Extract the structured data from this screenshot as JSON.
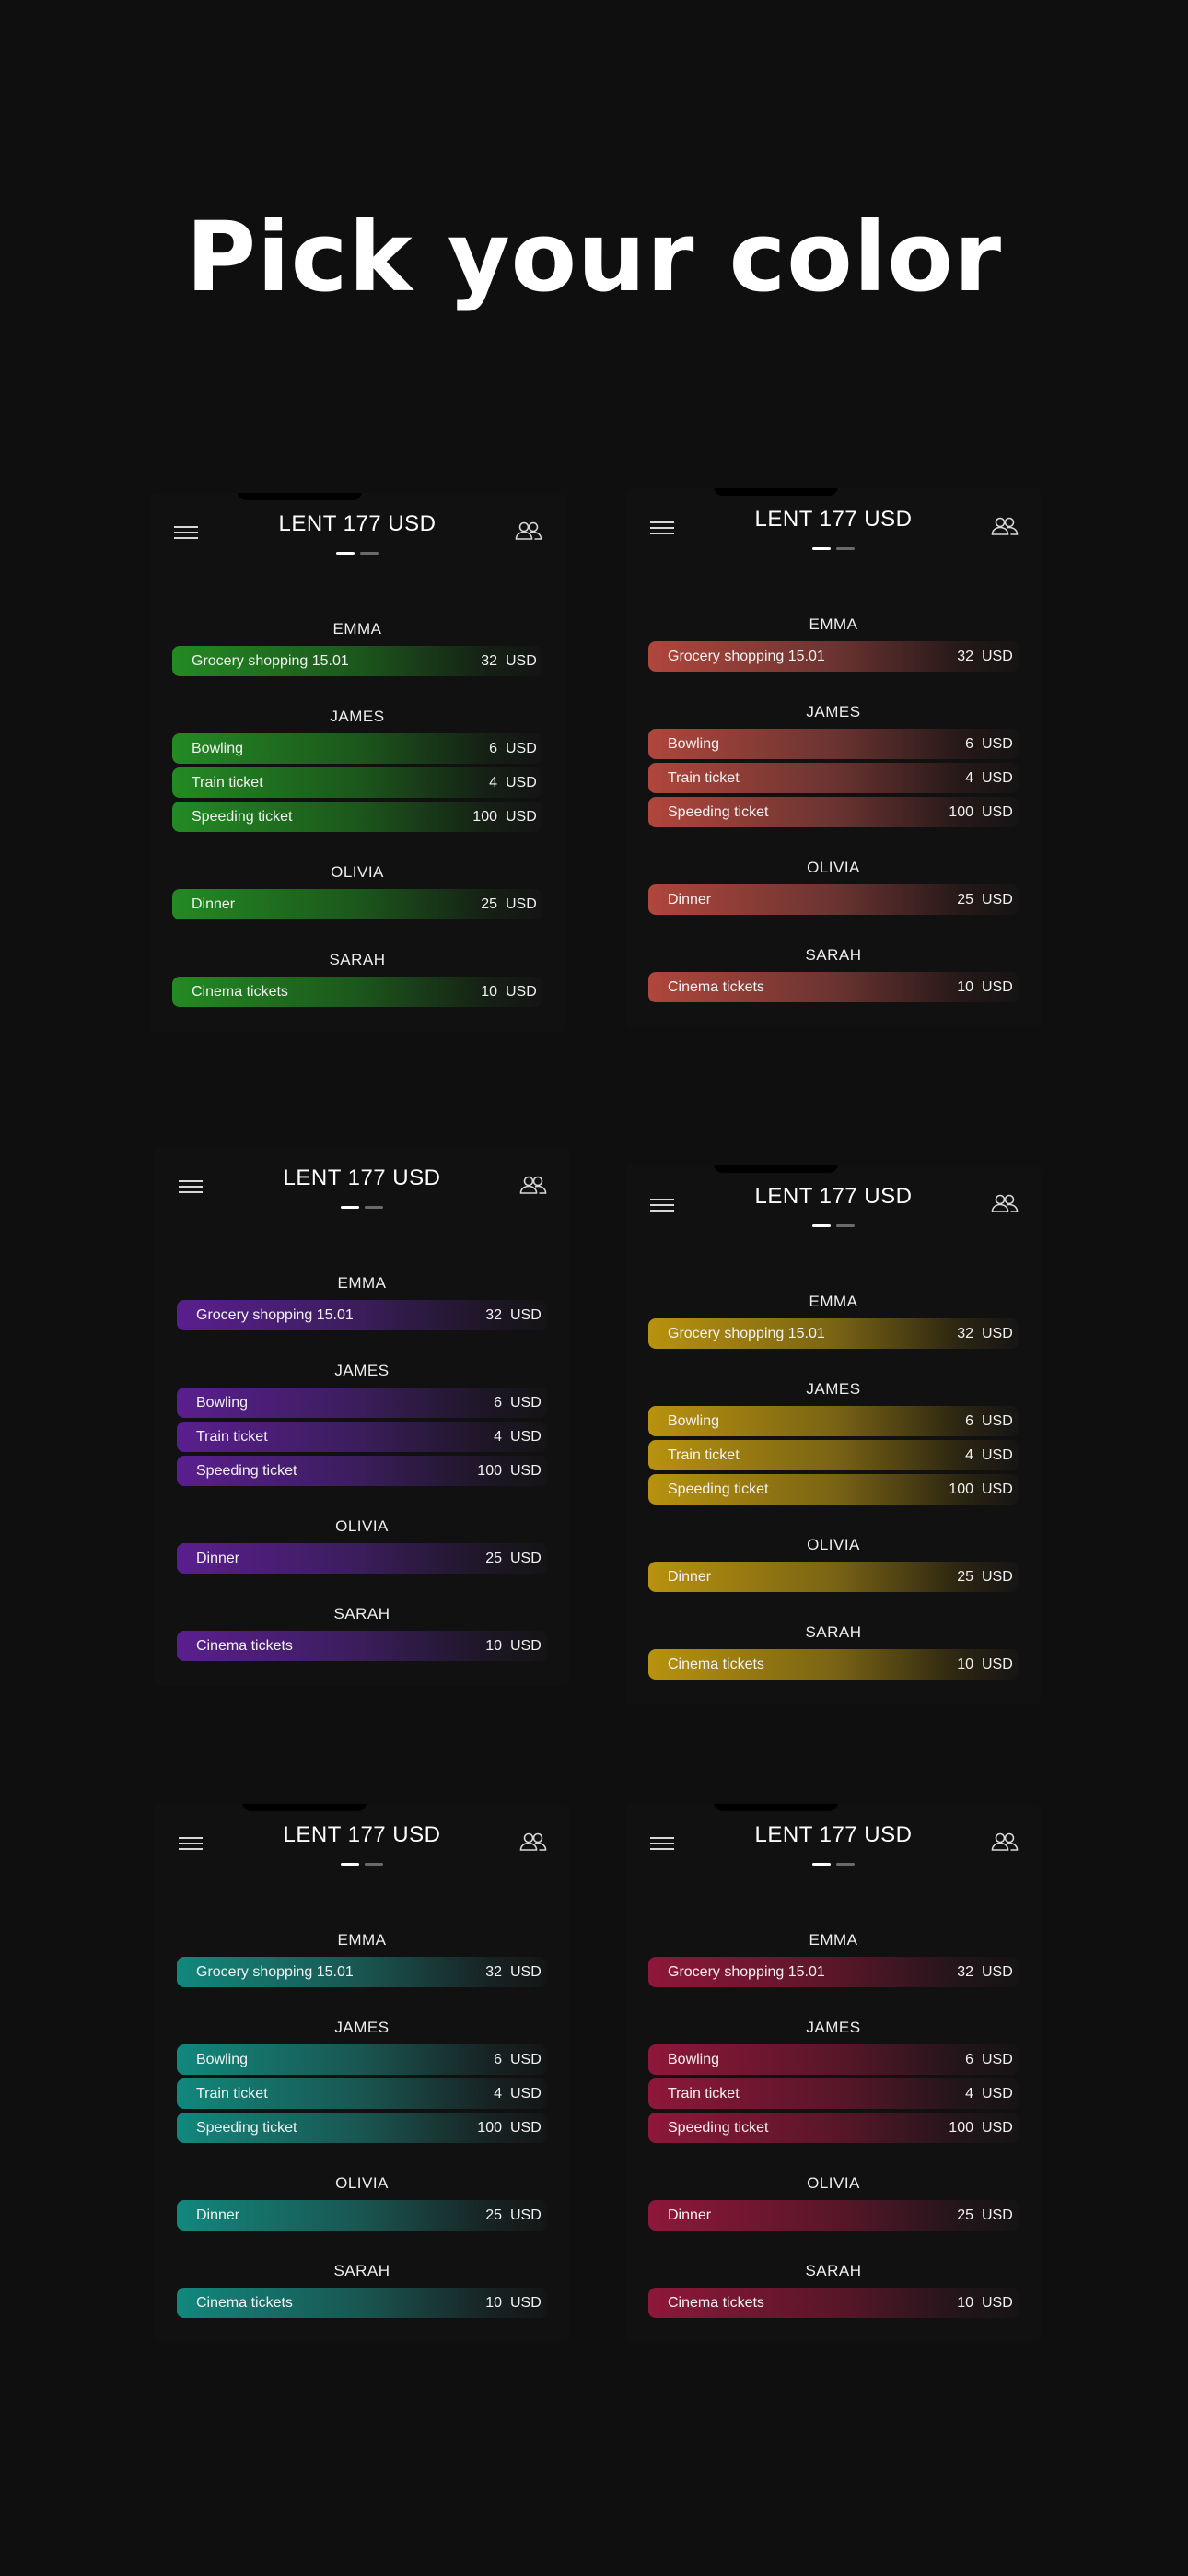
{
  "headline": "Pick your color",
  "screens": [
    {
      "theme": "green",
      "accent": "#238a23",
      "title": "LENT 177 USD",
      "groups": [
        {
          "name": "EMMA",
          "items": [
            {
              "label": "Grocery shopping 15.01",
              "amount": "32",
              "currency": "USD"
            }
          ]
        },
        {
          "name": "JAMES",
          "items": [
            {
              "label": "Bowling",
              "amount": "6",
              "currency": "USD"
            },
            {
              "label": "Train ticket",
              "amount": "4",
              "currency": "USD"
            },
            {
              "label": "Speeding ticket",
              "amount": "100",
              "currency": "USD"
            }
          ]
        },
        {
          "name": "OLIVIA",
          "items": [
            {
              "label": "Dinner",
              "amount": "25",
              "currency": "USD"
            }
          ]
        },
        {
          "name": "SARAH",
          "items": [
            {
              "label": "Cinema tickets",
              "amount": "10",
              "currency": "USD"
            }
          ]
        }
      ]
    },
    {
      "theme": "red",
      "accent": "#b0463c",
      "title": "LENT 177 USD",
      "groups": [
        {
          "name": "EMMA",
          "items": [
            {
              "label": "Grocery shopping 15.01",
              "amount": "32",
              "currency": "USD"
            }
          ]
        },
        {
          "name": "JAMES",
          "items": [
            {
              "label": "Bowling",
              "amount": "6",
              "currency": "USD"
            },
            {
              "label": "Train ticket",
              "amount": "4",
              "currency": "USD"
            },
            {
              "label": "Speeding ticket",
              "amount": "100",
              "currency": "USD"
            }
          ]
        },
        {
          "name": "OLIVIA",
          "items": [
            {
              "label": "Dinner",
              "amount": "25",
              "currency": "USD"
            }
          ]
        },
        {
          "name": "SARAH",
          "items": [
            {
              "label": "Cinema tickets",
              "amount": "10",
              "currency": "USD"
            }
          ]
        }
      ]
    },
    {
      "theme": "purple",
      "accent": "#5a1f8f",
      "title": "LENT 177 USD",
      "groups": [
        {
          "name": "EMMA",
          "items": [
            {
              "label": "Grocery shopping 15.01",
              "amount": "32",
              "currency": "USD"
            }
          ]
        },
        {
          "name": "JAMES",
          "items": [
            {
              "label": "Bowling",
              "amount": "6",
              "currency": "USD"
            },
            {
              "label": "Train ticket",
              "amount": "4",
              "currency": "USD"
            },
            {
              "label": "Speeding ticket",
              "amount": "100",
              "currency": "USD"
            }
          ]
        },
        {
          "name": "OLIVIA",
          "items": [
            {
              "label": "Dinner",
              "amount": "25",
              "currency": "USD"
            }
          ]
        },
        {
          "name": "SARAH",
          "items": [
            {
              "label": "Cinema tickets",
              "amount": "10",
              "currency": "USD"
            }
          ]
        }
      ]
    },
    {
      "theme": "gold",
      "accent": "#b8920f",
      "title": "LENT 177 USD",
      "groups": [
        {
          "name": "EMMA",
          "items": [
            {
              "label": "Grocery shopping 15.01",
              "amount": "32",
              "currency": "USD"
            }
          ]
        },
        {
          "name": "JAMES",
          "items": [
            {
              "label": "Bowling",
              "amount": "6",
              "currency": "USD"
            },
            {
              "label": "Train ticket",
              "amount": "4",
              "currency": "USD"
            },
            {
              "label": "Speeding ticket",
              "amount": "100",
              "currency": "USD"
            }
          ]
        },
        {
          "name": "OLIVIA",
          "items": [
            {
              "label": "Dinner",
              "amount": "25",
              "currency": "USD"
            }
          ]
        },
        {
          "name": "SARAH",
          "items": [
            {
              "label": "Cinema tickets",
              "amount": "10",
              "currency": "USD"
            }
          ]
        }
      ]
    },
    {
      "theme": "teal",
      "accent": "#11887d",
      "title": "LENT 177 USD",
      "groups": [
        {
          "name": "EMMA",
          "items": [
            {
              "label": "Grocery shopping 15.01",
              "amount": "32",
              "currency": "USD"
            }
          ]
        },
        {
          "name": "JAMES",
          "items": [
            {
              "label": "Bowling",
              "amount": "6",
              "currency": "USD"
            },
            {
              "label": "Train ticket",
              "amount": "4",
              "currency": "USD"
            },
            {
              "label": "Speeding ticket",
              "amount": "100",
              "currency": "USD"
            }
          ]
        },
        {
          "name": "OLIVIA",
          "items": [
            {
              "label": "Dinner",
              "amount": "25",
              "currency": "USD"
            }
          ]
        },
        {
          "name": "SARAH",
          "items": [
            {
              "label": "Cinema tickets",
              "amount": "10",
              "currency": "USD"
            }
          ]
        }
      ]
    },
    {
      "theme": "crimson",
      "accent": "#8e173a",
      "title": "LENT 177 USD",
      "groups": [
        {
          "name": "EMMA",
          "items": [
            {
              "label": "Grocery shopping 15.01",
              "amount": "32",
              "currency": "USD"
            }
          ]
        },
        {
          "name": "JAMES",
          "items": [
            {
              "label": "Bowling",
              "amount": "6",
              "currency": "USD"
            },
            {
              "label": "Train ticket",
              "amount": "4",
              "currency": "USD"
            },
            {
              "label": "Speeding ticket",
              "amount": "100",
              "currency": "USD"
            }
          ]
        },
        {
          "name": "OLIVIA",
          "items": [
            {
              "label": "Dinner",
              "amount": "25",
              "currency": "USD"
            }
          ]
        },
        {
          "name": "SARAH",
          "items": [
            {
              "label": "Cinema tickets",
              "amount": "10",
              "currency": "USD"
            }
          ]
        }
      ]
    }
  ]
}
